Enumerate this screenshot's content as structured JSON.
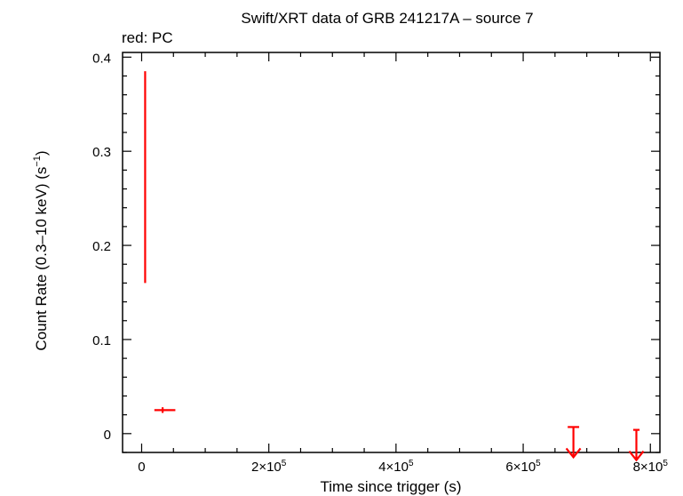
{
  "chart_data": {
    "type": "scatter",
    "title": "Swift/XRT data of GRB 241217A – source 7",
    "subtitle": "red: PC",
    "xlabel": "Time since trigger (s)",
    "ylabel_main": "Count Rate (0.3–10 keV) (s",
    "ylabel_exp": "−1",
    "ylabel_close": ")",
    "xlim": [
      -30000,
      815000
    ],
    "ylim": [
      -0.02,
      0.405
    ],
    "x_ticks": [
      {
        "value": 0,
        "mantissa": "0",
        "exp": ""
      },
      {
        "value": 200000,
        "mantissa": "2×10",
        "exp": "5"
      },
      {
        "value": 400000,
        "mantissa": "4×10",
        "exp": "5"
      },
      {
        "value": 600000,
        "mantissa": "6×10",
        "exp": "5"
      },
      {
        "value": 800000,
        "mantissa": "8×10",
        "exp": "5"
      }
    ],
    "y_ticks": [
      {
        "value": 0,
        "label": "0"
      },
      {
        "value": 0.1,
        "label": "0.1"
      },
      {
        "value": 0.2,
        "label": "0.2"
      },
      {
        "value": 0.3,
        "label": "0.3"
      },
      {
        "value": 0.4,
        "label": "0.4"
      }
    ],
    "color": "#ff0000",
    "series": [
      {
        "name": "PC",
        "points": [
          {
            "x": 5500,
            "xerr_low": 1000,
            "xerr_high": 1000,
            "y": 0.272,
            "y_low": 0.16,
            "y_high": 0.385
          },
          {
            "x": 33000,
            "xerr_low": 13000,
            "xerr_high": 20000,
            "y": 0.025,
            "y_low": 0.022,
            "y_high": 0.028
          }
        ],
        "upper_limits": [
          {
            "x": 679000,
            "xerr_low": 9000,
            "xerr_high": 9000,
            "y": 0.007
          },
          {
            "x": 778000,
            "xerr_low": 5000,
            "xerr_high": 5000,
            "y": 0.004
          }
        ]
      }
    ]
  }
}
